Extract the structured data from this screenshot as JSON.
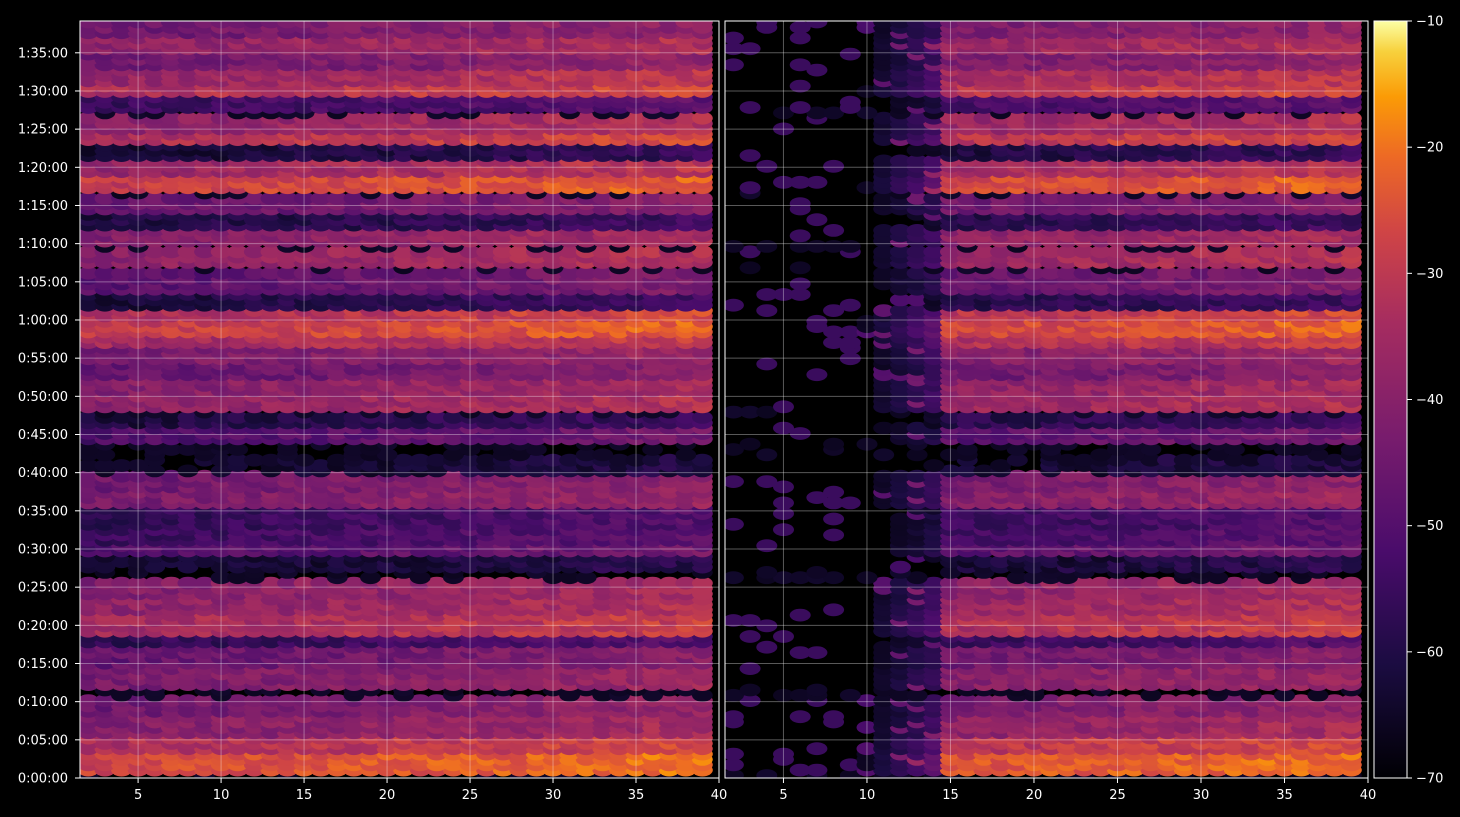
{
  "chart_data": [
    {
      "type": "heatmap",
      "panel": "left",
      "x_ticks": [
        "5",
        "10",
        "15",
        "20",
        "25",
        "30",
        "35",
        "40"
      ],
      "xlim": [
        1.5,
        40
      ],
      "y_ticks": [
        "0:00:00",
        "0:05:00",
        "0:10:00",
        "0:15:00",
        "0:20:00",
        "0:25:00",
        "0:30:00",
        "0:35:00",
        "0:40:00",
        "0:45:00",
        "0:50:00",
        "0:55:00",
        "1:00:00",
        "1:05:00",
        "1:10:00",
        "1:15:00",
        "1:20:00",
        "1:25:00",
        "1:30:00",
        "1:35:00"
      ],
      "ylim_seconds": [
        0,
        5950
      ],
      "grid": true,
      "colormap": "inferno",
      "value_range": [
        -70,
        -10
      ],
      "row_level_samples": [
        {
          "time": "0:04:00",
          "level_at_x2": -20,
          "level_at_x40": -25
        },
        {
          "time": "0:12:00",
          "level_at_x2": -50,
          "level_at_x40": -38
        },
        {
          "time": "0:20:00",
          "level_at_x2": -40,
          "level_at_x40": -36
        },
        {
          "time": "0:45:00",
          "level_at_x2": -40,
          "level_at_x40": -28
        },
        {
          "time": "0:56:00",
          "level_at_x2": -28,
          "level_at_x40": -20
        },
        {
          "time": "1:12:00",
          "level_at_x2": -26,
          "level_at_x40": -26
        },
        {
          "time": "1:23:00",
          "level_at_x2": -36,
          "level_at_x40": -24
        }
      ]
    },
    {
      "type": "heatmap",
      "panel": "right",
      "x_ticks": [
        "5",
        "10",
        "15",
        "20",
        "25",
        "30",
        "35",
        "40"
      ],
      "xlim": [
        1.5,
        40
      ],
      "y_ticks_shared": true,
      "grid": true,
      "colormap": "inferno",
      "value_range": [
        -70,
        -10
      ],
      "note_low_region": "x<15 mostly near -70 except a few bands"
    },
    {
      "type": "colorbar",
      "ticks": [
        "−10",
        "−20",
        "−30",
        "−40",
        "−50",
        "−60",
        "−70"
      ],
      "range": [
        -70,
        -10
      ],
      "colormap": "inferno"
    }
  ],
  "colors": {
    "background": "#000000",
    "axes_border": "#ffffff",
    "grid": "#ffffff"
  }
}
